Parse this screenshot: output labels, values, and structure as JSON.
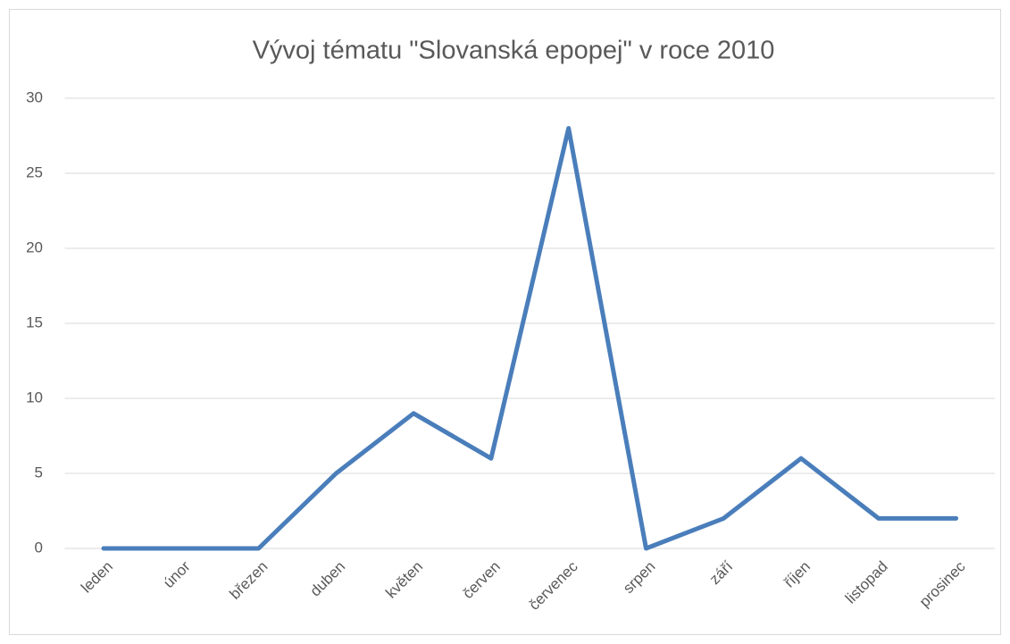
{
  "chart_data": {
    "type": "line",
    "title": "Vývoj tématu \"Slovanská epopej\" v roce 2010",
    "categories": [
      "leden",
      "únor",
      "březen",
      "duben",
      "květen",
      "červen",
      "červenec",
      "srpen",
      "září",
      "říjen",
      "listopad",
      "prosinec"
    ],
    "series": [
      {
        "name": "Slovanská epopej",
        "color": "#4a7ebb",
        "values": [
          0,
          0,
          0,
          5,
          9,
          6,
          28,
          0,
          2,
          6,
          2,
          2
        ]
      }
    ],
    "ylim": [
      0,
      30
    ],
    "yticks": [
      0,
      5,
      10,
      15,
      20,
      25,
      30
    ],
    "grid": true
  }
}
